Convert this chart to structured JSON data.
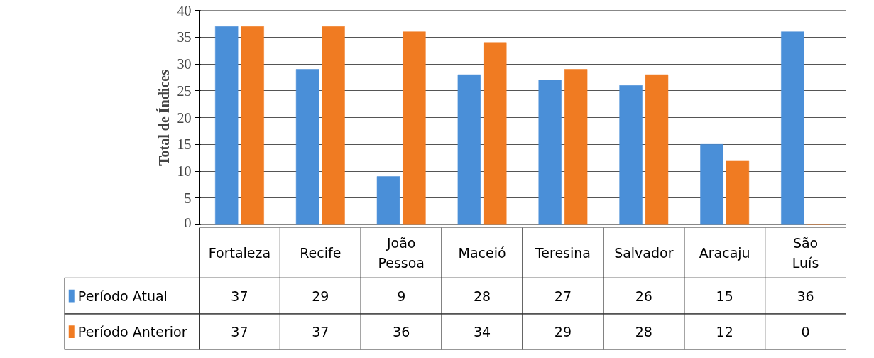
{
  "chart_data": {
    "type": "bar",
    "ylabel": "Total de Índices",
    "categories": [
      "Fortaleza",
      "Recife",
      "João Pessoa",
      "Maceió",
      "Teresina",
      "Salvador",
      "Aracaju",
      "São Luís"
    ],
    "series": [
      {
        "name": "Período Atual",
        "color": "#4a8fd8",
        "values": [
          37,
          29,
          9,
          28,
          27,
          26,
          15,
          36
        ]
      },
      {
        "name": "Período Anterior",
        "color": "#f07b22",
        "values": [
          37,
          37,
          36,
          34,
          29,
          28,
          12,
          0
        ]
      }
    ],
    "ylim": [
      0,
      40
    ],
    "yticks": [
      0,
      5,
      10,
      15,
      20,
      25,
      30,
      35,
      40
    ],
    "grid": "y",
    "legend": "bottom",
    "data_labels": true
  }
}
